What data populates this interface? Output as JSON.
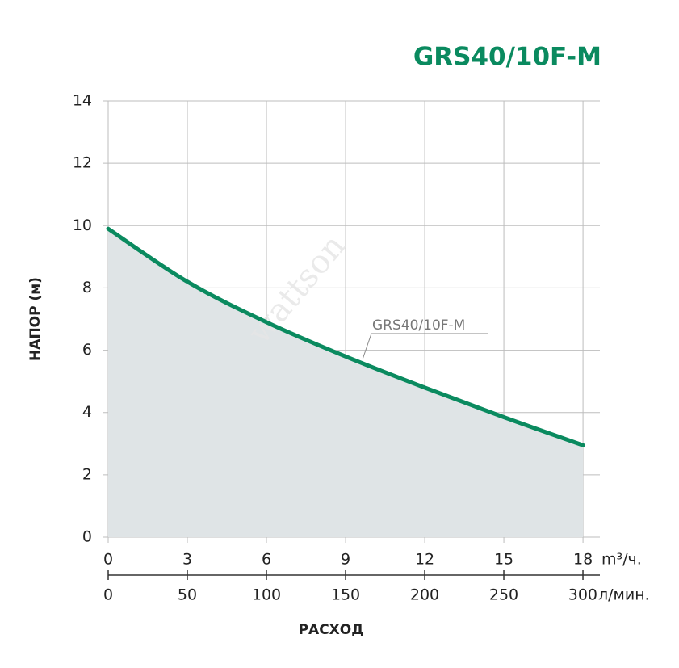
{
  "chart_data": {
    "type": "area",
    "title": "GRS40/10F-M",
    "x": [
      0,
      3,
      6,
      9,
      12,
      15,
      18
    ],
    "series": [
      {
        "name": "GRS40/10F-M",
        "color": "#0a8a5f",
        "fill": "#dfe4e6",
        "values": [
          9.9,
          8.2,
          6.9,
          5.8,
          4.8,
          3.85,
          2.95
        ]
      }
    ],
    "xlim": [
      0,
      18.64
    ],
    "xticks": [
      0,
      3,
      6,
      9,
      12,
      15,
      18
    ],
    "x_unit": "m³/ч.",
    "x2lim": [
      0,
      310.7
    ],
    "x2ticks": [
      0,
      50,
      100,
      150,
      200,
      250,
      300
    ],
    "x2_unit": "л/мин.",
    "ylim": [
      0,
      14
    ],
    "yticks": [
      0,
      2,
      4,
      6,
      8,
      10,
      12,
      14
    ],
    "y_label": "НАПОР (м)",
    "x_label": "РАСХОД",
    "watermark": "wattson",
    "grid": true
  }
}
